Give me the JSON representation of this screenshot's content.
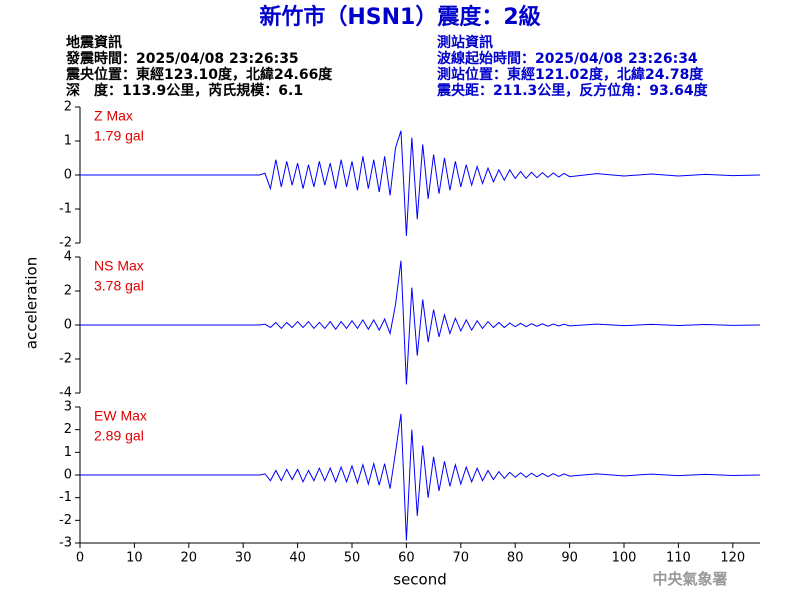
{
  "title": "新竹市（HSN1）震度：2級",
  "event_info": [
    "地震資訊",
    "發震時間：2025/04/08 23:26:35",
    "震央位置：東經123.10度，北緯24.66度",
    "深　度：113.9公里，芮氏規模：6.1"
  ],
  "station_info": [
    "測站資訊",
    "波線起始時間：2025/04/08 23:26:34",
    "測站位置：東經121.02度，北緯24.78度",
    "震央距：211.3公里，反方位角：93.64度"
  ],
  "ylabel": "acceleration",
  "footer": "中央氣象署",
  "chart_data": [
    {
      "type": "line",
      "annotation": [
        "Z Max",
        "1.79 gal"
      ],
      "color": "#0000ff",
      "xlim": [
        0,
        125
      ],
      "ylim": [
        -2,
        2
      ],
      "yticks": [
        -2,
        -1,
        0,
        1,
        2
      ],
      "x": [
        0,
        33,
        34,
        35,
        36,
        37,
        38,
        39,
        40,
        41,
        42,
        43,
        44,
        45,
        46,
        47,
        48,
        49,
        50,
        51,
        52,
        53,
        54,
        55,
        56,
        57,
        58,
        59,
        60,
        61,
        62,
        63,
        64,
        65,
        66,
        67,
        68,
        69,
        70,
        71,
        72,
        73,
        74,
        75,
        76,
        77,
        78,
        79,
        80,
        81,
        82,
        83,
        84,
        85,
        86,
        87,
        88,
        89,
        90,
        95,
        100,
        105,
        110,
        115,
        120,
        125
      ],
      "values": [
        0,
        0,
        0.05,
        -0.4,
        0.45,
        -0.35,
        0.4,
        -0.3,
        0.35,
        -0.4,
        0.3,
        -0.35,
        0.4,
        -0.3,
        0.35,
        -0.4,
        0.45,
        -0.35,
        0.4,
        -0.45,
        0.55,
        -0.4,
        0.45,
        -0.5,
        0.55,
        -0.6,
        0.8,
        1.3,
        -1.79,
        1.1,
        -1.3,
        0.9,
        -0.7,
        0.6,
        -0.55,
        0.5,
        -0.45,
        0.4,
        -0.35,
        0.3,
        -0.3,
        0.25,
        -0.25,
        0.2,
        -0.2,
        0.15,
        -0.15,
        0.15,
        -0.1,
        0.1,
        -0.1,
        0.08,
        -0.08,
        0.07,
        -0.07,
        0.06,
        -0.06,
        0.05,
        -0.05,
        0.04,
        -0.03,
        0.03,
        -0.03,
        0.02,
        -0.02,
        0
      ]
    },
    {
      "type": "line",
      "annotation": [
        "NS Max",
        "3.78 gal"
      ],
      "color": "#0000ff",
      "xlim": [
        0,
        125
      ],
      "ylim": [
        -4,
        4
      ],
      "yticks": [
        -4,
        -2,
        0,
        2,
        4
      ],
      "x": [
        0,
        33,
        34,
        35,
        36,
        37,
        38,
        39,
        40,
        41,
        42,
        43,
        44,
        45,
        46,
        47,
        48,
        49,
        50,
        51,
        52,
        53,
        54,
        55,
        56,
        57,
        58,
        59,
        60,
        61,
        62,
        63,
        64,
        65,
        66,
        67,
        68,
        69,
        70,
        71,
        72,
        73,
        74,
        75,
        76,
        77,
        78,
        79,
        80,
        81,
        82,
        83,
        84,
        85,
        86,
        87,
        88,
        89,
        90,
        95,
        100,
        105,
        110,
        115,
        120,
        125
      ],
      "values": [
        0,
        0,
        0.05,
        -0.15,
        0.15,
        -0.2,
        0.15,
        -0.15,
        0.2,
        -0.15,
        0.2,
        -0.2,
        0.15,
        -0.2,
        0.2,
        -0.25,
        0.2,
        -0.2,
        0.25,
        -0.2,
        0.3,
        -0.25,
        0.3,
        -0.3,
        0.35,
        -0.5,
        1.2,
        3.78,
        -3.5,
        2.2,
        -1.8,
        1.5,
        -1.0,
        0.9,
        -0.7,
        0.6,
        -0.5,
        0.4,
        -0.35,
        0.3,
        -0.3,
        0.25,
        -0.2,
        0.2,
        -0.15,
        0.15,
        -0.15,
        0.12,
        -0.1,
        0.1,
        -0.1,
        0.08,
        -0.08,
        0.07,
        -0.07,
        0.06,
        -0.06,
        0.05,
        -0.05,
        0.05,
        -0.04,
        0.04,
        -0.03,
        0.03,
        -0.02,
        0
      ]
    },
    {
      "type": "line",
      "annotation": [
        "EW Max",
        "2.89 gal"
      ],
      "color": "#0000ff",
      "xlim": [
        0,
        125
      ],
      "ylim": [
        -3,
        3
      ],
      "yticks": [
        -3,
        -2,
        -1,
        0,
        1,
        2,
        3
      ],
      "xticks": [
        0,
        10,
        20,
        30,
        40,
        50,
        60,
        70,
        80,
        90,
        100,
        110,
        120
      ],
      "xlabel": "second",
      "x": [
        0,
        33,
        34,
        35,
        36,
        37,
        38,
        39,
        40,
        41,
        42,
        43,
        44,
        45,
        46,
        47,
        48,
        49,
        50,
        51,
        52,
        53,
        54,
        55,
        56,
        57,
        58,
        59,
        60,
        61,
        62,
        63,
        64,
        65,
        66,
        67,
        68,
        69,
        70,
        71,
        72,
        73,
        74,
        75,
        76,
        77,
        78,
        79,
        80,
        81,
        82,
        83,
        84,
        85,
        86,
        87,
        88,
        89,
        90,
        95,
        100,
        105,
        110,
        115,
        120,
        125
      ],
      "values": [
        0,
        0,
        0.05,
        -0.25,
        0.2,
        -0.25,
        0.25,
        -0.2,
        0.25,
        -0.3,
        0.2,
        -0.25,
        0.3,
        -0.25,
        0.3,
        -0.3,
        0.35,
        -0.3,
        0.4,
        -0.35,
        0.45,
        -0.4,
        0.5,
        -0.45,
        0.5,
        -0.6,
        1.0,
        2.7,
        -2.89,
        2.0,
        -1.8,
        1.3,
        -1.0,
        0.8,
        -0.7,
        0.6,
        -0.5,
        0.45,
        -0.4,
        0.35,
        -0.3,
        0.3,
        -0.25,
        0.2,
        -0.2,
        0.15,
        -0.15,
        0.12,
        -0.1,
        0.1,
        -0.1,
        0.08,
        -0.08,
        0.07,
        -0.07,
        0.06,
        -0.06,
        0.05,
        -0.05,
        0.05,
        -0.04,
        0.04,
        -0.03,
        0.03,
        -0.02,
        0
      ]
    }
  ]
}
